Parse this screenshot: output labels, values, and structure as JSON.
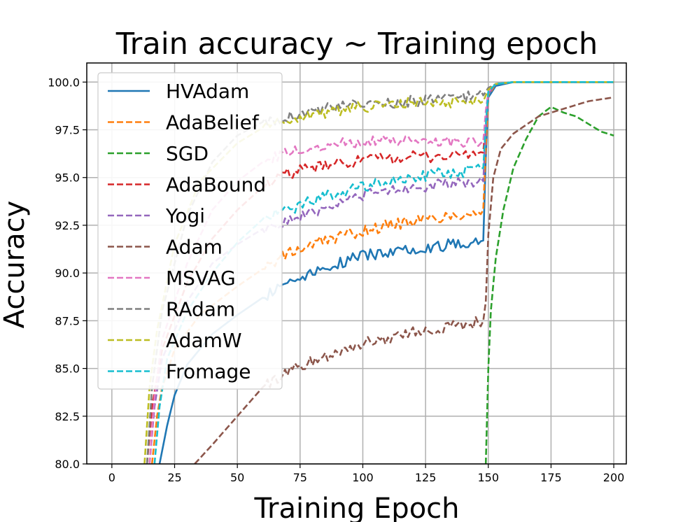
{
  "chart_data": {
    "type": "line",
    "title": "Train accuracy ~ Training epoch",
    "xlabel": "Training Epoch",
    "ylabel": "Accuracy",
    "xlim": [
      -10,
      205
    ],
    "ylim": [
      80,
      101
    ],
    "xticks": [
      0,
      25,
      50,
      75,
      100,
      125,
      150,
      175,
      200
    ],
    "yticks": [
      80.0,
      82.5,
      85.0,
      87.5,
      90.0,
      92.5,
      95.0,
      97.5,
      100.0
    ],
    "ytick_labels": [
      "80.0",
      "82.5",
      "85.0",
      "87.5",
      "90.0",
      "92.5",
      "95.0",
      "97.5",
      "100.0"
    ],
    "grid": true,
    "legend_position": "upper-left",
    "series": [
      {
        "name": "HVAdam",
        "color": "#1f77b4",
        "dash": "solid",
        "points": [
          [
            19,
            80
          ],
          [
            22,
            82
          ],
          [
            25,
            83.6
          ],
          [
            30,
            85.2
          ],
          [
            40,
            86.8
          ],
          [
            50,
            87.8
          ],
          [
            60,
            88.7
          ],
          [
            70,
            89.6
          ],
          [
            75,
            89.8
          ],
          [
            80,
            90.1
          ],
          [
            90,
            90.5
          ],
          [
            100,
            90.9
          ],
          [
            110,
            91.1
          ],
          [
            120,
            91.3
          ],
          [
            130,
            91.4
          ],
          [
            140,
            91.6
          ],
          [
            148,
            91.7
          ],
          [
            149,
            96
          ],
          [
            150,
            99.2
          ],
          [
            153,
            99.8
          ],
          [
            160,
            100
          ],
          [
            200,
            100
          ]
        ]
      },
      {
        "name": "AdaBelief",
        "color": "#ff7f0e",
        "dash": "dashed",
        "points": [
          [
            16,
            80
          ],
          [
            18,
            82.5
          ],
          [
            20,
            84
          ],
          [
            25,
            86
          ],
          [
            35,
            87.8
          ],
          [
            50,
            89.3
          ],
          [
            60,
            90.2
          ],
          [
            70,
            91
          ],
          [
            80,
            91.5
          ],
          [
            90,
            91.9
          ],
          [
            100,
            92.2
          ],
          [
            110,
            92.5
          ],
          [
            120,
            92.7
          ],
          [
            130,
            92.9
          ],
          [
            140,
            93.1
          ],
          [
            148,
            93.3
          ],
          [
            149,
            96.5
          ],
          [
            150,
            99.3
          ],
          [
            153,
            99.9
          ],
          [
            160,
            100
          ],
          [
            200,
            100
          ]
        ]
      },
      {
        "name": "SGD",
        "color": "#2ca02c",
        "dash": "dashed",
        "points": [
          [
            149,
            80
          ],
          [
            150,
            85
          ],
          [
            151,
            88
          ],
          [
            153,
            90.8
          ],
          [
            156,
            93.3
          ],
          [
            160,
            95.5
          ],
          [
            165,
            97
          ],
          [
            170,
            98.2
          ],
          [
            175,
            98.7
          ],
          [
            180,
            98.4
          ],
          [
            185,
            98.2
          ],
          [
            190,
            97.8
          ],
          [
            195,
            97.4
          ],
          [
            200,
            97.2
          ]
        ]
      },
      {
        "name": "AdaBound",
        "color": "#d62728",
        "dash": "dashed",
        "points": [
          [
            14,
            80
          ],
          [
            16,
            83
          ],
          [
            20,
            86
          ],
          [
            30,
            89.5
          ],
          [
            40,
            91.8
          ],
          [
            50,
            93.3
          ],
          [
            60,
            94.5
          ],
          [
            70,
            95.2
          ],
          [
            80,
            95.5
          ],
          [
            90,
            95.7
          ],
          [
            100,
            95.9
          ],
          [
            110,
            96
          ],
          [
            120,
            96.1
          ],
          [
            130,
            96.1
          ],
          [
            140,
            96.2
          ],
          [
            148,
            96.3
          ],
          [
            149,
            98
          ],
          [
            150,
            99.4
          ],
          [
            153,
            99.9
          ],
          [
            160,
            100
          ],
          [
            200,
            100
          ]
        ]
      },
      {
        "name": "Yogi",
        "color": "#9467bd",
        "dash": "dashed",
        "points": [
          [
            15,
            80
          ],
          [
            17,
            83
          ],
          [
            20,
            85.5
          ],
          [
            30,
            88.5
          ],
          [
            40,
            90.5
          ],
          [
            50,
            91.5
          ],
          [
            60,
            92.3
          ],
          [
            70,
            92.7
          ],
          [
            80,
            93.2
          ],
          [
            90,
            93.7
          ],
          [
            100,
            94.1
          ],
          [
            110,
            94.3
          ],
          [
            120,
            94.5
          ],
          [
            130,
            94.6
          ],
          [
            140,
            94.7
          ],
          [
            148,
            94.8
          ],
          [
            149,
            97.5
          ],
          [
            150,
            99.4
          ],
          [
            153,
            99.9
          ],
          [
            160,
            100
          ],
          [
            200,
            100
          ]
        ]
      },
      {
        "name": "Adam",
        "color": "#8c564b",
        "dash": "dashed",
        "points": [
          [
            33,
            80
          ],
          [
            40,
            81
          ],
          [
            50,
            82.5
          ],
          [
            60,
            84
          ],
          [
            70,
            84.8
          ],
          [
            80,
            85.4
          ],
          [
            90,
            85.9
          ],
          [
            100,
            86.3
          ],
          [
            110,
            86.6
          ],
          [
            120,
            86.9
          ],
          [
            130,
            87.1
          ],
          [
            140,
            87.3
          ],
          [
            148,
            87.5
          ],
          [
            149,
            88.5
          ],
          [
            150,
            92
          ],
          [
            152,
            95
          ],
          [
            155,
            96.5
          ],
          [
            160,
            97.3
          ],
          [
            170,
            98.2
          ],
          [
            180,
            98.6
          ],
          [
            190,
            99
          ],
          [
            200,
            99.2
          ]
        ]
      },
      {
        "name": "MSVAG",
        "color": "#e377c2",
        "dash": "dashed",
        "points": [
          [
            15,
            80
          ],
          [
            17,
            83.5
          ],
          [
            20,
            86.5
          ],
          [
            30,
            90.5
          ],
          [
            40,
            93.3
          ],
          [
            50,
            94.8
          ],
          [
            60,
            95.8
          ],
          [
            70,
            96.3
          ],
          [
            80,
            96.6
          ],
          [
            90,
            96.8
          ],
          [
            100,
            96.9
          ],
          [
            110,
            96.9
          ],
          [
            120,
            96.9
          ],
          [
            130,
            96.9
          ],
          [
            140,
            96.9
          ],
          [
            148,
            96.9
          ],
          [
            149,
            98.5
          ],
          [
            150,
            99.5
          ],
          [
            153,
            99.9
          ],
          [
            160,
            100
          ],
          [
            200,
            100
          ]
        ]
      },
      {
        "name": "RAdam",
        "color": "#7f7f7f",
        "dash": "dashed",
        "points": [
          [
            14,
            80
          ],
          [
            16,
            84
          ],
          [
            20,
            88
          ],
          [
            30,
            93
          ],
          [
            40,
            95.8
          ],
          [
            50,
            97.2
          ],
          [
            60,
            97.9
          ],
          [
            70,
            98.2
          ],
          [
            80,
            98.5
          ],
          [
            90,
            98.7
          ],
          [
            100,
            98.8
          ],
          [
            110,
            98.9
          ],
          [
            120,
            99
          ],
          [
            130,
            99.1
          ],
          [
            140,
            99.2
          ],
          [
            148,
            99.3
          ],
          [
            150,
            99.7
          ],
          [
            153,
            99.9
          ],
          [
            160,
            100
          ],
          [
            200,
            100
          ]
        ]
      },
      {
        "name": "AdamW",
        "color": "#bcbd22",
        "dash": "dashed",
        "points": [
          [
            13,
            80
          ],
          [
            15,
            84
          ],
          [
            18,
            87
          ],
          [
            25,
            91.5
          ],
          [
            35,
            94.8
          ],
          [
            50,
            96.8
          ],
          [
            60,
            97.6
          ],
          [
            70,
            98
          ],
          [
            80,
            98.3
          ],
          [
            90,
            98.5
          ],
          [
            100,
            98.7
          ],
          [
            110,
            98.8
          ],
          [
            120,
            98.9
          ],
          [
            130,
            98.9
          ],
          [
            140,
            99
          ],
          [
            148,
            99
          ],
          [
            150,
            99.6
          ],
          [
            153,
            99.9
          ],
          [
            160,
            100
          ],
          [
            200,
            100
          ]
        ]
      },
      {
        "name": "Fromage",
        "color": "#17becf",
        "dash": "dashed",
        "points": [
          [
            17,
            80
          ],
          [
            19,
            83
          ],
          [
            22,
            85.5
          ],
          [
            30,
            88
          ],
          [
            40,
            90
          ],
          [
            50,
            91.6
          ],
          [
            60,
            92.8
          ],
          [
            70,
            93.3
          ],
          [
            80,
            93.8
          ],
          [
            90,
            94.2
          ],
          [
            100,
            94.5
          ],
          [
            110,
            94.8
          ],
          [
            120,
            95
          ],
          [
            130,
            95.2
          ],
          [
            140,
            95.3
          ],
          [
            148,
            95.5
          ],
          [
            149,
            97.8
          ],
          [
            150,
            99.5
          ],
          [
            153,
            99.9
          ],
          [
            160,
            100
          ],
          [
            200,
            100
          ]
        ]
      }
    ]
  }
}
